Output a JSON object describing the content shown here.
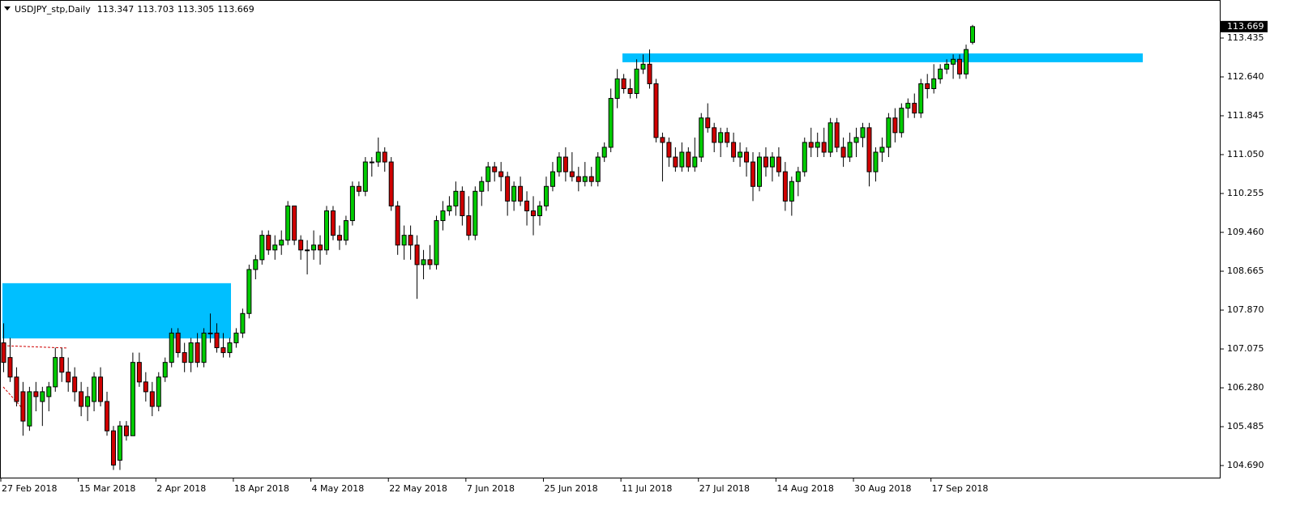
{
  "chart_data": {
    "type": "candlestick",
    "title": "USDJPY_stp,Daily",
    "up_color": "#00cc00",
    "down_color": "#d00000",
    "wick_color": "#000000",
    "categories": [
      "27 Feb 2018",
      null,
      null,
      null,
      null,
      null,
      null,
      null,
      null,
      null,
      null,
      null,
      "15 Mar 2018",
      null,
      null,
      null,
      null,
      null,
      null,
      null,
      null,
      null,
      null,
      null,
      "2 Apr 2018",
      null,
      null,
      null,
      null,
      null,
      null,
      null,
      null,
      null,
      null,
      null,
      "18 Apr 2018",
      null,
      null,
      null,
      null,
      null,
      null,
      null,
      null,
      null,
      null,
      null,
      "4 May 2018",
      null,
      null,
      null,
      null,
      null,
      null,
      null,
      null,
      null,
      null,
      null,
      "22 May 2018",
      null,
      null,
      null,
      null,
      null,
      null,
      null,
      null,
      null,
      null,
      null,
      "7 Jun 2018",
      null,
      null,
      null,
      null,
      null,
      null,
      null,
      null,
      null,
      null,
      null,
      "25 Jun 2018",
      null,
      null,
      null,
      null,
      null,
      null,
      null,
      null,
      null,
      null,
      null,
      "11 Jul 2018",
      null,
      null,
      null,
      null,
      null,
      null,
      null,
      null,
      null,
      null,
      null,
      "27 Jul 2018",
      null,
      null,
      null,
      null,
      null,
      null,
      null,
      null,
      null,
      null,
      null,
      "14 Aug 2018",
      null,
      null,
      null,
      null,
      null,
      null,
      null,
      null,
      null,
      null,
      null,
      "30 Aug 2018",
      null,
      null,
      null,
      null,
      null,
      null,
      null,
      null,
      null,
      null,
      null,
      "17 Sep 2018",
      null,
      null,
      null,
      null,
      null,
      null
    ],
    "open": [
      107.2,
      106.9,
      106.5,
      106.2,
      105.5,
      106.2,
      106.0,
      106.1,
      106.3,
      106.9,
      106.6,
      106.5,
      106.2,
      105.9,
      106.0,
      106.5,
      106.0,
      105.4,
      104.8,
      105.5,
      105.3,
      106.8,
      106.4,
      106.2,
      105.9,
      106.5,
      106.8,
      107.4,
      107.0,
      106.8,
      107.2,
      106.8,
      107.4,
      107.4,
      107.1,
      107.0,
      107.2,
      107.4,
      107.8,
      108.7,
      108.9,
      109.4,
      109.1,
      109.2,
      109.3,
      110.0,
      109.3,
      109.1,
      109.1,
      109.2,
      109.1,
      109.9,
      109.4,
      109.3,
      109.7,
      110.4,
      110.3,
      110.9,
      110.9,
      111.1,
      110.9,
      110.0,
      109.2,
      109.4,
      109.2,
      108.8,
      108.9,
      108.8,
      109.7,
      109.9,
      110.0,
      110.3,
      109.8,
      109.4,
      110.3,
      110.5,
      110.8,
      110.7,
      110.6,
      110.1,
      110.4,
      110.1,
      109.9,
      109.8,
      110.0,
      110.4,
      110.7,
      111.0,
      110.7,
      110.6,
      110.5,
      110.6,
      110.5,
      111.0,
      111.2,
      112.2,
      112.6,
      112.4,
      112.3,
      112.8,
      112.9,
      112.5,
      111.4,
      111.3,
      111.0,
      110.8,
      111.1,
      110.8,
      111.0,
      111.8,
      111.6,
      111.3,
      111.5,
      111.3,
      111.0,
      111.1,
      110.9,
      110.4,
      111.0,
      110.8,
      111.0,
      110.7,
      110.1,
      110.5,
      110.7,
      111.3,
      111.2,
      111.3,
      111.1,
      111.7,
      111.2,
      111.0,
      111.3,
      111.4,
      111.6,
      110.7,
      111.1,
      111.2,
      111.8,
      111.5,
      112.0,
      112.1,
      111.9,
      112.5,
      112.4,
      112.6,
      112.8,
      112.9,
      113.0,
      112.7,
      113.347
    ],
    "high": [
      107.6,
      107.3,
      106.7,
      106.4,
      106.3,
      106.4,
      106.3,
      106.4,
      107.1,
      107.1,
      106.9,
      106.7,
      106.4,
      106.3,
      106.6,
      106.7,
      106.2,
      105.5,
      105.6,
      105.6,
      107.0,
      107.0,
      106.6,
      106.4,
      106.6,
      106.9,
      107.5,
      107.5,
      107.2,
      107.3,
      107.4,
      107.5,
      107.8,
      107.6,
      107.4,
      107.3,
      107.5,
      107.9,
      108.8,
      109.0,
      109.5,
      109.5,
      109.4,
      109.5,
      110.1,
      110.0,
      109.4,
      109.3,
      109.5,
      109.4,
      110.0,
      110.0,
      109.6,
      109.8,
      110.5,
      110.5,
      111.0,
      111.0,
      111.4,
      111.2,
      111.0,
      110.1,
      109.6,
      109.6,
      109.4,
      109.1,
      109.2,
      109.8,
      110.1,
      110.2,
      110.5,
      110.4,
      110.2,
      110.4,
      110.6,
      110.9,
      110.9,
      110.9,
      110.7,
      110.5,
      110.6,
      110.3,
      110.2,
      110.1,
      110.6,
      110.9,
      111.1,
      111.2,
      111.1,
      110.8,
      110.9,
      110.8,
      111.1,
      111.3,
      112.4,
      112.8,
      112.7,
      112.6,
      113.0,
      113.1,
      113.2,
      112.6,
      111.5,
      111.4,
      111.2,
      111.3,
      111.2,
      111.4,
      111.9,
      112.1,
      111.7,
      111.6,
      111.6,
      111.5,
      111.3,
      111.2,
      111.1,
      111.1,
      111.2,
      111.1,
      111.2,
      110.9,
      110.6,
      110.8,
      111.4,
      111.6,
      111.5,
      111.6,
      111.8,
      111.8,
      111.4,
      111.5,
      111.6,
      111.7,
      111.7,
      111.2,
      111.4,
      111.9,
      112.0,
      112.1,
      112.2,
      112.3,
      112.6,
      112.7,
      112.9,
      112.9,
      113.0,
      113.1,
      113.1,
      113.3,
      113.703
    ],
    "low": [
      106.6,
      106.4,
      105.9,
      105.3,
      105.4,
      105.8,
      105.5,
      105.8,
      106.2,
      106.4,
      106.2,
      106.0,
      105.7,
      105.6,
      105.8,
      105.9,
      105.3,
      104.6,
      104.6,
      105.2,
      105.3,
      106.3,
      106.0,
      105.7,
      105.8,
      106.4,
      106.7,
      106.9,
      106.6,
      106.6,
      106.7,
      106.7,
      107.2,
      107.0,
      106.9,
      106.9,
      107.1,
      107.3,
      107.7,
      108.5,
      108.8,
      109.0,
      108.9,
      109.0,
      109.2,
      109.2,
      108.9,
      108.6,
      108.9,
      108.8,
      109.0,
      109.3,
      109.1,
      109.2,
      109.6,
      110.2,
      110.2,
      110.6,
      110.8,
      110.7,
      109.9,
      109.0,
      108.9,
      108.9,
      108.1,
      108.5,
      108.7,
      108.7,
      109.5,
      109.8,
      109.8,
      109.6,
      109.3,
      109.3,
      110.0,
      110.3,
      110.5,
      110.3,
      109.8,
      109.9,
      110.0,
      109.6,
      109.4,
      109.6,
      109.9,
      110.3,
      110.6,
      110.5,
      110.5,
      110.3,
      110.4,
      110.4,
      110.4,
      110.9,
      111.1,
      112.0,
      112.3,
      112.2,
      112.2,
      112.7,
      112.4,
      111.3,
      110.5,
      110.8,
      110.7,
      110.7,
      110.7,
      110.7,
      110.9,
      111.5,
      111.1,
      111.0,
      111.2,
      110.9,
      110.8,
      110.6,
      110.1,
      110.3,
      110.6,
      110.5,
      110.6,
      109.9,
      109.8,
      110.2,
      110.6,
      111.0,
      111.0,
      111.0,
      111.0,
      111.1,
      110.8,
      110.9,
      111.0,
      111.2,
      110.4,
      110.5,
      110.9,
      111.0,
      111.3,
      111.4,
      111.8,
      111.8,
      111.8,
      112.2,
      112.3,
      112.5,
      112.7,
      112.6,
      112.6,
      112.6,
      113.305
    ],
    "close": [
      106.8,
      106.5,
      106.0,
      105.6,
      106.2,
      106.1,
      106.2,
      106.3,
      106.9,
      106.6,
      106.4,
      106.2,
      105.9,
      106.1,
      106.5,
      106.0,
      105.4,
      104.7,
      105.5,
      105.3,
      106.8,
      106.4,
      106.2,
      105.9,
      106.5,
      106.8,
      107.4,
      107.0,
      106.8,
      107.2,
      106.8,
      107.4,
      107.4,
      107.1,
      107.0,
      107.2,
      107.4,
      107.8,
      108.7,
      108.9,
      109.4,
      109.1,
      109.2,
      109.3,
      110.0,
      109.3,
      109.1,
      109.1,
      109.2,
      109.1,
      109.9,
      109.4,
      109.3,
      109.7,
      110.4,
      110.3,
      110.9,
      110.9,
      111.1,
      110.9,
      110.0,
      109.2,
      109.4,
      109.2,
      108.8,
      108.9,
      108.8,
      109.7,
      109.9,
      110.0,
      110.3,
      109.8,
      109.4,
      110.3,
      110.5,
      110.8,
      110.7,
      110.6,
      110.1,
      110.4,
      110.1,
      109.9,
      109.8,
      110.0,
      110.4,
      110.7,
      111.0,
      110.7,
      110.6,
      110.5,
      110.6,
      110.5,
      111.0,
      111.2,
      112.2,
      112.6,
      112.4,
      112.3,
      112.8,
      112.9,
      112.5,
      111.4,
      111.3,
      111.0,
      110.8,
      111.1,
      110.8,
      111.0,
      111.8,
      111.6,
      111.3,
      111.5,
      111.3,
      111.0,
      111.1,
      110.9,
      110.4,
      111.0,
      110.8,
      111.0,
      110.7,
      110.1,
      110.5,
      110.7,
      111.3,
      111.2,
      111.3,
      111.1,
      111.7,
      111.2,
      111.0,
      111.3,
      111.4,
      111.6,
      110.7,
      111.1,
      111.2,
      111.8,
      111.5,
      112.0,
      112.1,
      111.9,
      112.5,
      112.4,
      112.6,
      112.8,
      112.9,
      113.0,
      112.7,
      113.2,
      113.669
    ],
    "zones": [
      {
        "low": 107.29,
        "high": 108.42
      },
      {
        "low": 112.94,
        "high": 113.12
      }
    ],
    "zone_color": "#00bfff",
    "ylim": [
      104.443,
      114.213
    ],
    "yticks": [
      {
        "value": 104.69,
        "label": "104.690"
      },
      105.485,
      {
        "value": 106.28,
        "label": "106.280"
      },
      107.075,
      {
        "value": 107.87,
        "label": "107.870"
      },
      108.665,
      {
        "value": 109.46,
        "label": "109.460"
      },
      110.255,
      {
        "value": 111.05,
        "label": "111.050"
      },
      111.845,
      {
        "value": 112.64,
        "label": "112.640"
      },
      113.435
    ],
    "grid": false
  }
}
